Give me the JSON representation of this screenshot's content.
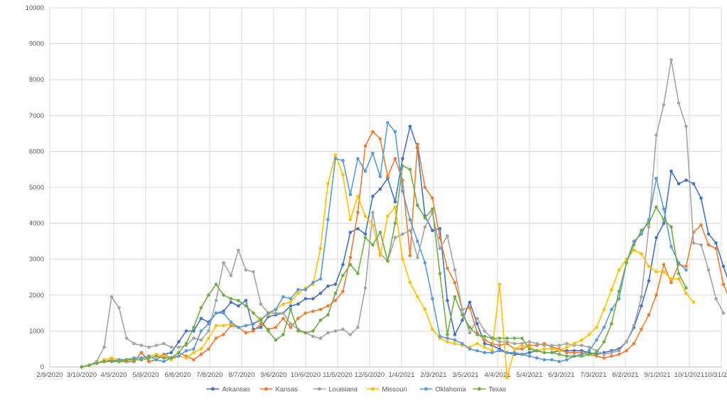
{
  "chart_data": {
    "type": "line",
    "title": "",
    "xlabel": "",
    "ylabel": "",
    "ylim": [
      0,
      10000
    ],
    "yticks": [
      0,
      1000,
      2000,
      3000,
      4000,
      5000,
      6000,
      7000,
      8000,
      9000,
      10000
    ],
    "ytick_labels": [
      "0",
      "1000",
      "2000",
      "3000",
      "4000",
      "5000",
      "6000",
      "7000",
      "8000",
      "9000",
      "10000"
    ],
    "xlim": [
      "2/9/2020",
      "10/31/2021"
    ],
    "xticks": [
      "2/9/2020",
      "3/10/2020",
      "4/9/2020",
      "5/9/2020",
      "6/8/2020",
      "7/8/2020",
      "8/7/2020",
      "9/6/2020",
      "10/6/2020",
      "11/5/2020",
      "12/5/2020",
      "1/4/2021",
      "2/3/2021",
      "3/5/2021",
      "4/4/2021",
      "5/4/2021",
      "6/3/2021",
      "7/3/2021",
      "8/2/2021",
      "9/1/2021",
      "10/1/2021",
      "10/31/2021"
    ],
    "grid": "vertical and horizontal",
    "legend_position": "bottom",
    "series": [
      {
        "name": "Arkansas",
        "color": "#4472C4",
        "values": [
          0,
          50,
          100,
          150,
          200,
          150,
          150,
          150,
          400,
          150,
          200,
          350,
          400,
          700,
          1000,
          1000,
          1350,
          1250,
          1500,
          1550,
          1800,
          1700,
          1850,
          1050,
          1100,
          1400,
          1450,
          1500,
          1700,
          1750,
          1900,
          1900,
          2050,
          2250,
          2300,
          2850,
          3750,
          3850,
          3700,
          4750,
          4950,
          5250,
          4600,
          5800,
          6700,
          6100,
          4200,
          3800,
          3850,
          1850,
          900,
          1300,
          1800,
          1200,
          650,
          600,
          500,
          400,
          350,
          350,
          400,
          450,
          400,
          400,
          450,
          450,
          450,
          450,
          400,
          350,
          400,
          450,
          500,
          700,
          1100,
          1700,
          2400,
          3600,
          4000,
          5450,
          5100,
          5200,
          5100,
          4700,
          3700,
          3450,
          2800,
          2200
        ]
      },
      {
        "name": "Kansas",
        "color": "#ED7D31",
        "values": [
          0,
          50,
          100,
          150,
          200,
          150,
          150,
          150,
          400,
          150,
          200,
          350,
          250,
          400,
          300,
          200,
          350,
          500,
          800,
          900,
          1150,
          1100,
          950,
          1000,
          1200,
          1050,
          1100,
          1350,
          1100,
          1350,
          1500,
          1550,
          1600,
          1700,
          1850,
          2100,
          3050,
          4300,
          6150,
          6550,
          6350,
          5300,
          5800,
          5200,
          3100,
          6200,
          5000,
          4700,
          3600,
          2750,
          2350,
          1600,
          1650,
          950,
          750,
          650,
          600,
          650,
          500,
          500,
          600,
          600,
          650,
          550,
          500,
          400,
          400,
          400,
          350,
          300,
          250,
          300,
          350,
          450,
          650,
          1050,
          1450,
          2000,
          2850,
          2350,
          2850,
          2800,
          3750,
          3950,
          3400,
          3300,
          2300,
          1800
        ]
      },
      {
        "name": "Louisiana",
        "color": "#A5A5A5",
        "values": [
          0,
          50,
          150,
          550,
          1950,
          1650,
          800,
          650,
          600,
          550,
          600,
          650,
          550,
          550,
          600,
          800,
          750,
          1000,
          1850,
          2900,
          2550,
          3250,
          2700,
          2650,
          1750,
          1500,
          1500,
          1500,
          1200,
          1050,
          950,
          850,
          800,
          950,
          1000,
          1050,
          900,
          1100,
          2200,
          4300,
          3150,
          2950,
          3600,
          3700,
          3800,
          3050,
          3900,
          4300,
          3300,
          3650,
          2700,
          1600,
          950,
          1350,
          1000,
          800,
          700,
          700,
          650,
          650,
          700,
          650,
          600,
          600,
          600,
          650,
          600,
          600,
          550,
          450,
          350,
          400,
          450,
          700,
          1150,
          1950,
          3900,
          6450,
          7300,
          8550,
          7350,
          6700,
          3450,
          3400,
          2700,
          1900,
          1500
        ]
      },
      {
        "name": "Missouri",
        "color": "#FFC000",
        "values": [
          0,
          50,
          100,
          200,
          250,
          200,
          200,
          250,
          250,
          300,
          350,
          300,
          200,
          300,
          250,
          400,
          500,
          800,
          1150,
          1150,
          1200,
          1100,
          1150,
          1200,
          1350,
          1450,
          1600,
          1750,
          1800,
          2050,
          2200,
          2300,
          3300,
          5100,
          5900,
          5350,
          4100,
          4750,
          4200,
          3950,
          3100,
          4200,
          4450,
          3000,
          2350,
          1950,
          1600,
          1050,
          800,
          700,
          650,
          600,
          550,
          650,
          550,
          450,
          2300,
          -300,
          500,
          600,
          550,
          450,
          500,
          500,
          450,
          550,
          650,
          750,
          900,
          1100,
          1600,
          2150,
          2700,
          3000,
          3250,
          3150,
          2800,
          2650,
          2650,
          2450,
          2450,
          2050,
          1800
        ]
      },
      {
        "name": "Oklahoma",
        "color": "#5B9BD5",
        "values": [
          0,
          50,
          100,
          150,
          150,
          200,
          200,
          250,
          250,
          300,
          200,
          150,
          250,
          300,
          450,
          500,
          1000,
          1200,
          1500,
          1500,
          1250,
          1100,
          1150,
          1200,
          1300,
          1500,
          1600,
          1950,
          1900,
          2150,
          2150,
          2350,
          2450,
          4100,
          5800,
          5750,
          4800,
          5800,
          5450,
          5950,
          5300,
          6800,
          6550,
          4900,
          4100,
          3500,
          2900,
          1900,
          850,
          800,
          750,
          650,
          500,
          450,
          400,
          400,
          450,
          400,
          400,
          350,
          300,
          250,
          200,
          200,
          150,
          200,
          300,
          350,
          450,
          750,
          1100,
          1600,
          1900,
          2900,
          3500,
          3700,
          4100,
          5250,
          4400,
          3350,
          2900,
          2700
        ]
      },
      {
        "name": "Texas",
        "color": "#70AD47",
        "values": [
          0,
          50,
          100,
          150,
          150,
          150,
          200,
          200,
          200,
          250,
          300,
          250,
          250,
          400,
          650,
          1100,
          1650,
          2000,
          2300,
          2000,
          1900,
          1850,
          1700,
          1500,
          1300,
          1000,
          750,
          900,
          1600,
          1000,
          950,
          1000,
          1300,
          1450,
          2050,
          2550,
          2850,
          2600,
          3600,
          3400,
          3750,
          2950,
          4000,
          5600,
          5500,
          4500,
          4150,
          4400,
          2600,
          900,
          1950,
          1450,
          1100,
          900,
          850,
          800,
          800,
          800,
          800,
          800,
          500,
          450,
          400,
          400,
          350,
          300,
          300,
          300,
          350,
          400,
          700,
          1200,
          2100,
          2900,
          3400,
          3800,
          4000,
          4450,
          4100,
          3900,
          2600,
          2200
        ]
      }
    ]
  }
}
